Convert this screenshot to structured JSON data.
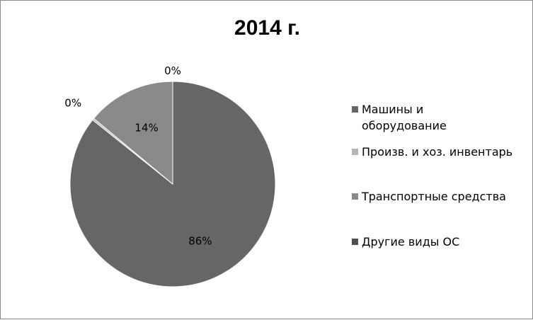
{
  "chart_data": {
    "type": "pie",
    "title": "2014 г.",
    "categories": [
      "Машины и оборудование",
      "Произв. и хоз. инвентарь",
      "Транспортные средства",
      "Другие виды ОС"
    ],
    "values": [
      86,
      0.3,
      14,
      0
    ],
    "value_labels": [
      "86%",
      "0%",
      "14%",
      "0%"
    ],
    "colors": [
      "#666666",
      "#b5b5b5",
      "#8a8a8a",
      "#4f4f4f"
    ],
    "legend_position": "right"
  }
}
